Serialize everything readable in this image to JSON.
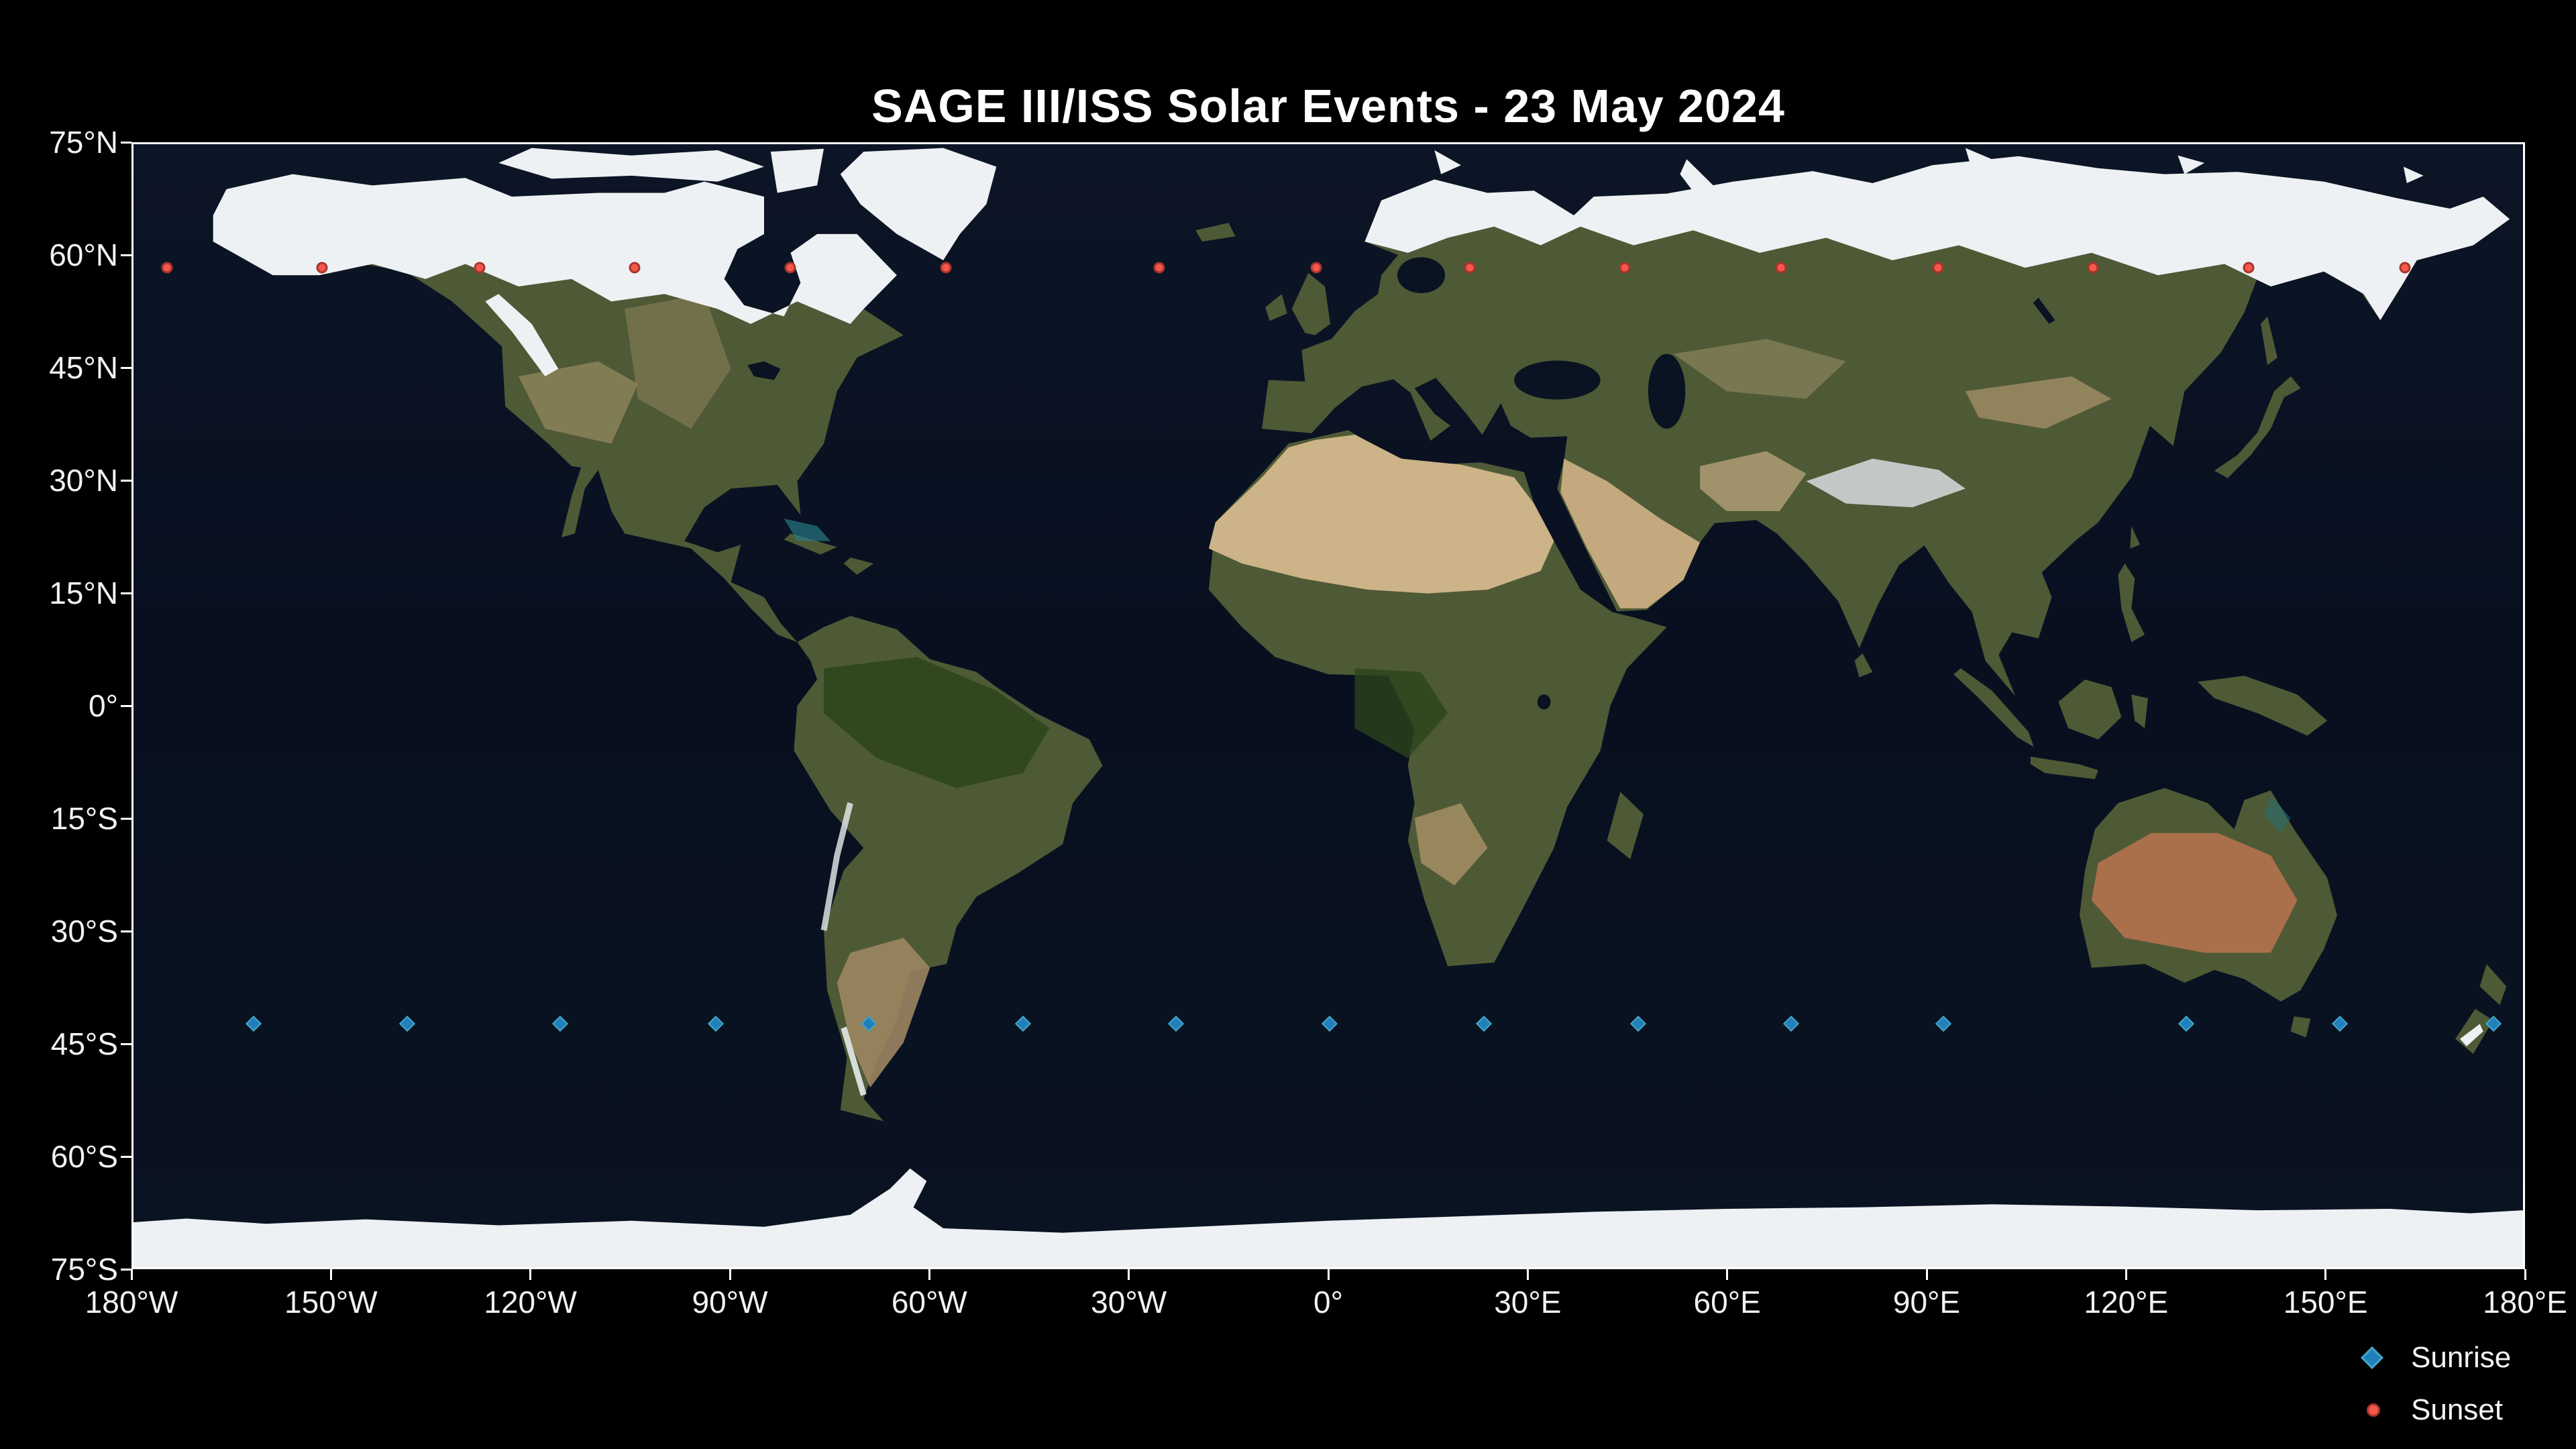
{
  "chart_data": {
    "type": "scatter",
    "title": "SAGE III/ISS Solar Events - 23 May 2024",
    "background": "world satellite map (equirectangular)",
    "xlim": [
      -180,
      180
    ],
    "ylim": [
      -75,
      75
    ],
    "grid": false,
    "x_ticks": [
      "180°W",
      "150°W",
      "120°W",
      "90°W",
      "60°W",
      "30°W",
      "0°",
      "30°E",
      "60°E",
      "90°E",
      "120°E",
      "150°E",
      "180°E"
    ],
    "y_ticks": [
      "75°N",
      "60°N",
      "45°N",
      "30°N",
      "15°N",
      "0°",
      "15°S",
      "30°S",
      "45°S",
      "60°S",
      "75°S"
    ],
    "legend_position": "lower right, below axes",
    "series": [
      {
        "name": "Sunrise",
        "marker": "diamond",
        "fill_color": "#2080bc",
        "edge_color": "#46a4c4",
        "points": [
          {
            "lon": -161.9,
            "lat": -42.5
          },
          {
            "lon": -138.8,
            "lat": -42.5
          },
          {
            "lon": -115.7,
            "lat": -42.5
          },
          {
            "lon": -92.3,
            "lat": -42.5
          },
          {
            "lon": -69.2,
            "lat": -42.5
          },
          {
            "lon": -46.0,
            "lat": -42.5
          },
          {
            "lon": -22.9,
            "lat": -42.5
          },
          {
            "lon": 0.2,
            "lat": -42.5
          },
          {
            "lon": 23.4,
            "lat": -42.5
          },
          {
            "lon": 46.7,
            "lat": -42.5
          },
          {
            "lon": 69.7,
            "lat": -42.5
          },
          {
            "lon": 92.7,
            "lat": -42.5
          },
          {
            "lon": 129.3,
            "lat": -42.5
          },
          {
            "lon": 152.4,
            "lat": -42.5
          },
          {
            "lon": 175.6,
            "lat": -42.5
          }
        ]
      },
      {
        "name": "Sunset",
        "marker": "circle",
        "fill_color": "#f4574b",
        "edge_color": "#a8352b",
        "points": [
          {
            "lon": -174.9,
            "lat": 58.5
          },
          {
            "lon": -151.6,
            "lat": 58.5
          },
          {
            "lon": -127.9,
            "lat": 58.5
          },
          {
            "lon": -104.5,
            "lat": 58.5
          },
          {
            "lon": -81.1,
            "lat": 58.5
          },
          {
            "lon": -57.6,
            "lat": 58.5
          },
          {
            "lon": -25.5,
            "lat": 58.5
          },
          {
            "lon": -1.8,
            "lat": 58.5
          },
          {
            "lon": 21.3,
            "lat": 58.5
          },
          {
            "lon": 44.7,
            "lat": 58.5
          },
          {
            "lon": 68.2,
            "lat": 58.5
          },
          {
            "lon": 91.9,
            "lat": 58.5
          },
          {
            "lon": 115.2,
            "lat": 58.5
          },
          {
            "lon": 138.7,
            "lat": 58.5
          },
          {
            "lon": 162.2,
            "lat": 58.5
          }
        ]
      }
    ]
  },
  "legend": {
    "items": [
      "Sunrise",
      "Sunset"
    ]
  }
}
